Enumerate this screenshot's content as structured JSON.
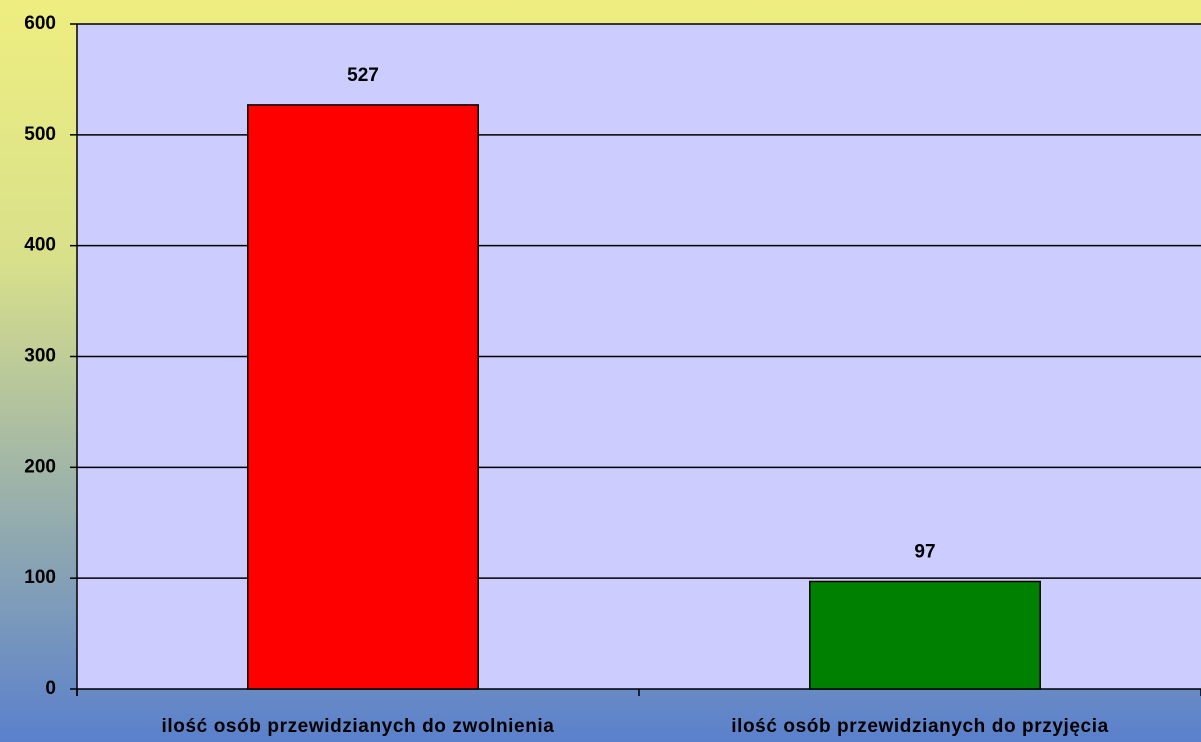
{
  "chart_data": {
    "type": "bar",
    "categories": [
      "ilość osób przewidzianych do zwolnienia",
      "ilość osób przewidzianych do przyjęcia"
    ],
    "values": [
      527,
      97
    ],
    "colors": [
      "#ff0000",
      "#008000"
    ],
    "ylim": [
      0,
      600
    ],
    "yticks": [
      0,
      100,
      200,
      300,
      400,
      500,
      600
    ],
    "grid": true
  }
}
